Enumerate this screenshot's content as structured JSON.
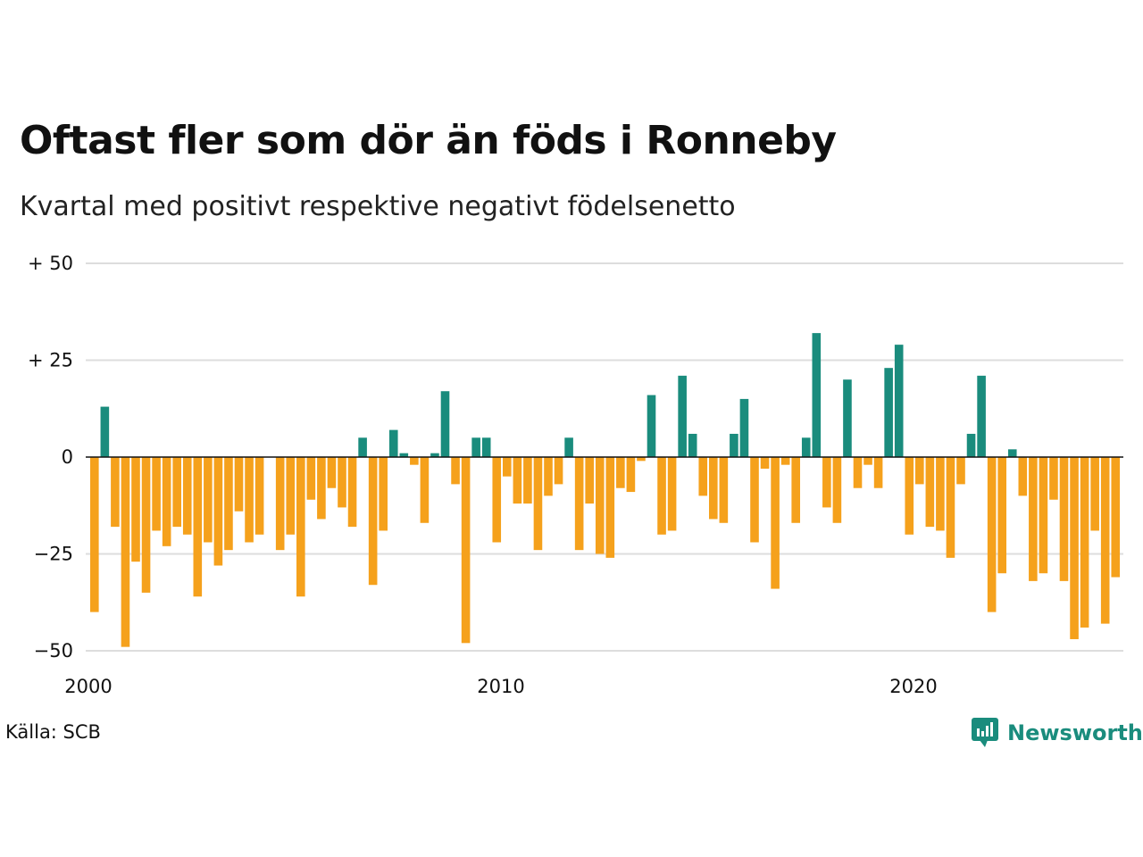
{
  "header": {
    "title": "Oftast fler som dör än föds i Ronneby",
    "subtitle": "Kvartal med positivt respektive negativt födelsenetto"
  },
  "footer": {
    "source": "Källa: SCB",
    "brand": "Newsworthy"
  },
  "colors": {
    "positive": "#1a8c7d",
    "negative": "#f5a11c",
    "grid": "#dddddd",
    "zero": "#111111",
    "brand": "#1a8c7d"
  },
  "chart_data": {
    "type": "bar",
    "ylim": [
      -50,
      50
    ],
    "yticks": [
      50,
      25,
      0,
      -25,
      -50
    ],
    "ytick_labels": [
      "+ 50",
      "+ 25",
      "0",
      "−25",
      "−50"
    ],
    "xticks": [
      2000,
      2010,
      2020
    ],
    "xtick_labels": [
      "2000",
      "2010",
      "2020"
    ],
    "x_start_year": 2000,
    "grid": true,
    "values": [
      -40,
      13,
      -18,
      -49,
      -27,
      -35,
      -19,
      -23,
      -18,
      -20,
      -36,
      -22,
      -28,
      -24,
      -14,
      -22,
      -20,
      0,
      -24,
      -20,
      -36,
      -11,
      -16,
      -8,
      -13,
      -18,
      5,
      -33,
      -19,
      7,
      1,
      -2,
      -17,
      1,
      17,
      -7,
      -48,
      5,
      5,
      -22,
      -5,
      -12,
      -12,
      -24,
      -10,
      -7,
      5,
      -24,
      -12,
      -25,
      -26,
      -8,
      -9,
      -1,
      16,
      -20,
      -19,
      21,
      6,
      -10,
      -16,
      -17,
      6,
      15,
      -22,
      -3,
      -34,
      -2,
      -17,
      5,
      32,
      -13,
      -17,
      20,
      -8,
      -2,
      -8,
      23,
      29,
      -20,
      -7,
      -18,
      -19,
      -26,
      -7,
      6,
      21,
      -40,
      -30,
      2,
      -10,
      -32,
      -30,
      -11,
      -32,
      -47,
      -44,
      -19,
      -43,
      -31
    ]
  }
}
